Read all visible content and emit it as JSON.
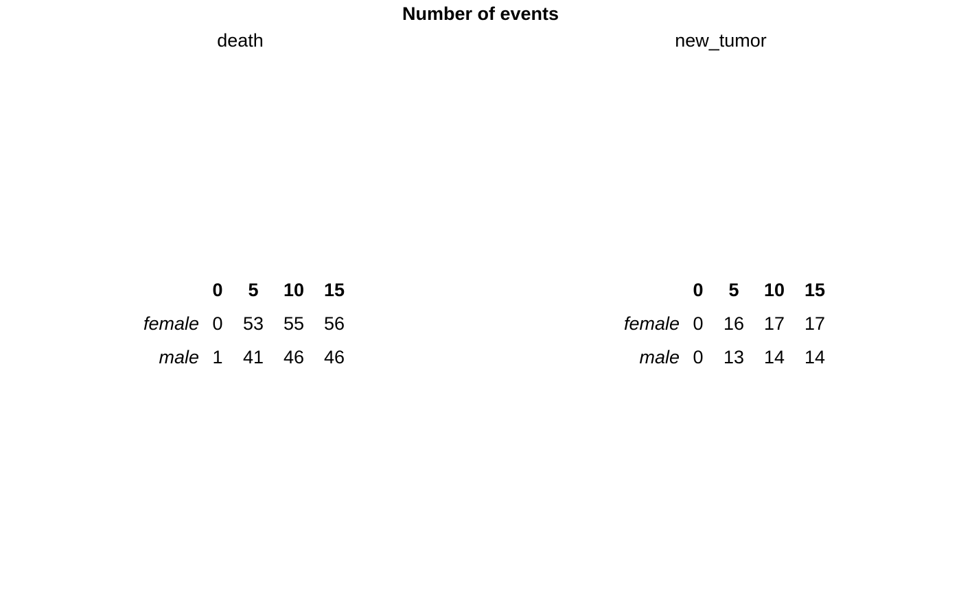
{
  "chart_data": {
    "type": "table",
    "title": "Number of events",
    "panels": [
      {
        "name": "death",
        "columns": [
          "0",
          "5",
          "10",
          "15"
        ],
        "rows": [
          {
            "label": "female",
            "values": [
              0,
              53,
              55,
              56
            ]
          },
          {
            "label": "male",
            "values": [
              1,
              41,
              46,
              46
            ]
          }
        ]
      },
      {
        "name": "new_tumor",
        "columns": [
          "0",
          "5",
          "10",
          "15"
        ],
        "rows": [
          {
            "label": "female",
            "values": [
              0,
              16,
              17,
              17
            ]
          },
          {
            "label": "male",
            "values": [
              0,
              13,
              14,
              14
            ]
          }
        ]
      }
    ]
  }
}
